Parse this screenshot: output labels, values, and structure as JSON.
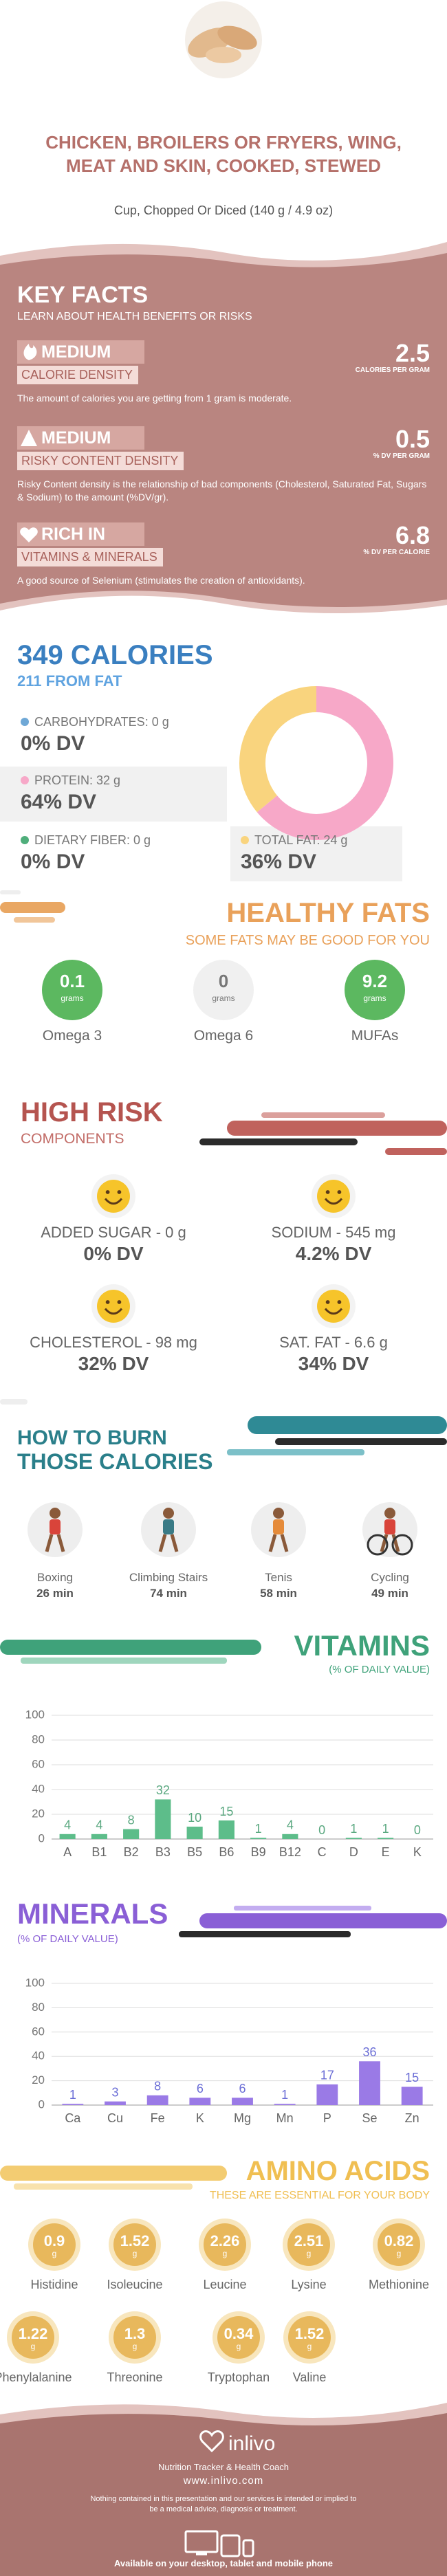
{
  "header": {
    "title": "CHICKEN, BROILERS OR FRYERS, WING, MEAT AND SKIN, COOKED, STEWED",
    "subtitle": "Cup, Chopped Or Diced (140 g / 4.9 oz)"
  },
  "key_facts": {
    "title": "KEY FACTS",
    "subtitle": "LEARN ABOUT HEALTH BENEFITS OR RISKS",
    "items": [
      {
        "level": "MEDIUM",
        "label": "CALORIE DENSITY",
        "value": 2.5,
        "unit": "CALORIES PER GRAM",
        "description": "The amount of calories you are getting from 1 gram is moderate."
      },
      {
        "level": "MEDIUM",
        "label": "RISKY CONTENT DENSITY",
        "value": 0.5,
        "unit": "% DV PER GRAM",
        "description": "Risky Content density is the relationship of bad components (Cholesterol, Saturated Fat, Sugars & Sodium) to the amount (%DV/gr)."
      },
      {
        "level": "RICH IN",
        "label": "VITAMINS & MINERALS",
        "value": 6.8,
        "unit": "% DV PER CALORIE",
        "description": "A good source of Selenium (stimulates the creation of antioxidants)."
      }
    ]
  },
  "calories": {
    "title": "349 CALORIES",
    "subtitle": "211 FROM FAT",
    "macros": [
      {
        "label": "CARBOHYDRATES: 0 g",
        "dv": 0,
        "dv_label": "0% DV",
        "color": "#6fa8d6"
      },
      {
        "label": "PROTEIN: 32 g",
        "dv": 64,
        "dv_label": "64% DV",
        "color": "#f7a8c8"
      },
      {
        "label": "DIETARY FIBER: 0 g",
        "dv": 0,
        "dv_label": "0% DV",
        "color": "#4fae7b"
      },
      {
        "label": "TOTAL FAT: 24 g",
        "dv": 36,
        "dv_label": "36% DV",
        "color": "#f9d47e"
      }
    ]
  },
  "healthy_fats": {
    "title": "HEALTHY FATS",
    "subtitle": "SOME FATS MAY BE GOOD FOR YOU",
    "unit": "grams",
    "items": [
      {
        "value": 0.1,
        "name": "Omega 3",
        "color": "#5cb860"
      },
      {
        "value": 0,
        "name": "Omega 6",
        "color": "#f0f0f0"
      },
      {
        "value": 9.2,
        "name": "MUFAs",
        "color": "#5cb860"
      }
    ]
  },
  "high_risk": {
    "title": "HIGH RISK",
    "subtitle": "COMPONENTS",
    "items": [
      {
        "label": "ADDED SUGAR - 0 g",
        "dv": "0% DV"
      },
      {
        "label": "SODIUM - 545 mg",
        "dv": "4.2% DV"
      },
      {
        "label": "CHOLESTEROL - 98 mg",
        "dv": "32% DV"
      },
      {
        "label": "SAT. FAT - 6.6 g",
        "dv": "34% DV"
      }
    ]
  },
  "burn": {
    "title_line1": "HOW TO BURN",
    "title_line2": "THOSE CALORIES",
    "activities": [
      {
        "name": "Boxing",
        "time": "26 min"
      },
      {
        "name": "Climbing Stairs",
        "time": "74 min"
      },
      {
        "name": "Tenis",
        "time": "58 min"
      },
      {
        "name": "Cycling",
        "time": "49 min"
      }
    ]
  },
  "chart_data": [
    {
      "type": "bar",
      "title": "VITAMINS",
      "subtitle": "(% OF DAILY VALUE)",
      "categories": [
        "A",
        "B1",
        "B2",
        "B3",
        "B5",
        "B6",
        "B9",
        "B12",
        "C",
        "D",
        "E",
        "K"
      ],
      "values": [
        4,
        4,
        8,
        32,
        10,
        15,
        1,
        4,
        0,
        1,
        1,
        0
      ],
      "color": "#5dbd8a",
      "ylim": [
        0,
        100
      ],
      "yticks": [
        0,
        20,
        40,
        60,
        80,
        100
      ],
      "grid": true
    },
    {
      "type": "bar",
      "title": "MINERALS",
      "subtitle": "(% OF DAILY VALUE)",
      "categories": [
        "Ca",
        "Cu",
        "Fe",
        "K",
        "Mg",
        "Mn",
        "P",
        "Se",
        "Zn"
      ],
      "values": [
        1,
        3,
        8,
        6,
        6,
        1,
        17,
        36,
        15
      ],
      "color": "#9a7ae6",
      "ylim": [
        0,
        100
      ],
      "yticks": [
        0,
        20,
        40,
        60,
        80,
        100
      ],
      "grid": true
    }
  ],
  "amino_acids": {
    "title": "AMINO ACIDS",
    "subtitle": "THESE ARE ESSENTIAL FOR YOUR BODY",
    "unit": "g",
    "items": [
      {
        "value": 0.9,
        "name": "Histidine"
      },
      {
        "value": 1.52,
        "name": "Isoleucine"
      },
      {
        "value": 2.26,
        "name": "Leucine"
      },
      {
        "value": 2.51,
        "name": "Lysine"
      },
      {
        "value": 0.82,
        "name": "Methionine"
      },
      {
        "value": 1.22,
        "name": "Phenylalanine"
      },
      {
        "value": 1.3,
        "name": "Threonine"
      },
      {
        "value": 0.34,
        "name": "Tryptophan"
      },
      {
        "value": 1.52,
        "name": "Valine"
      }
    ]
  },
  "footer": {
    "brand": "inlivo",
    "tagline": "Nutrition Tracker & Health Coach",
    "url": "www.inlivo.com",
    "disclaimer": "Nothing contained in this presentation and our services is intended or implied to be a medical advice, diagnosis or treatment.",
    "availability": "Available on your desktop, tablet and mobile phone"
  }
}
